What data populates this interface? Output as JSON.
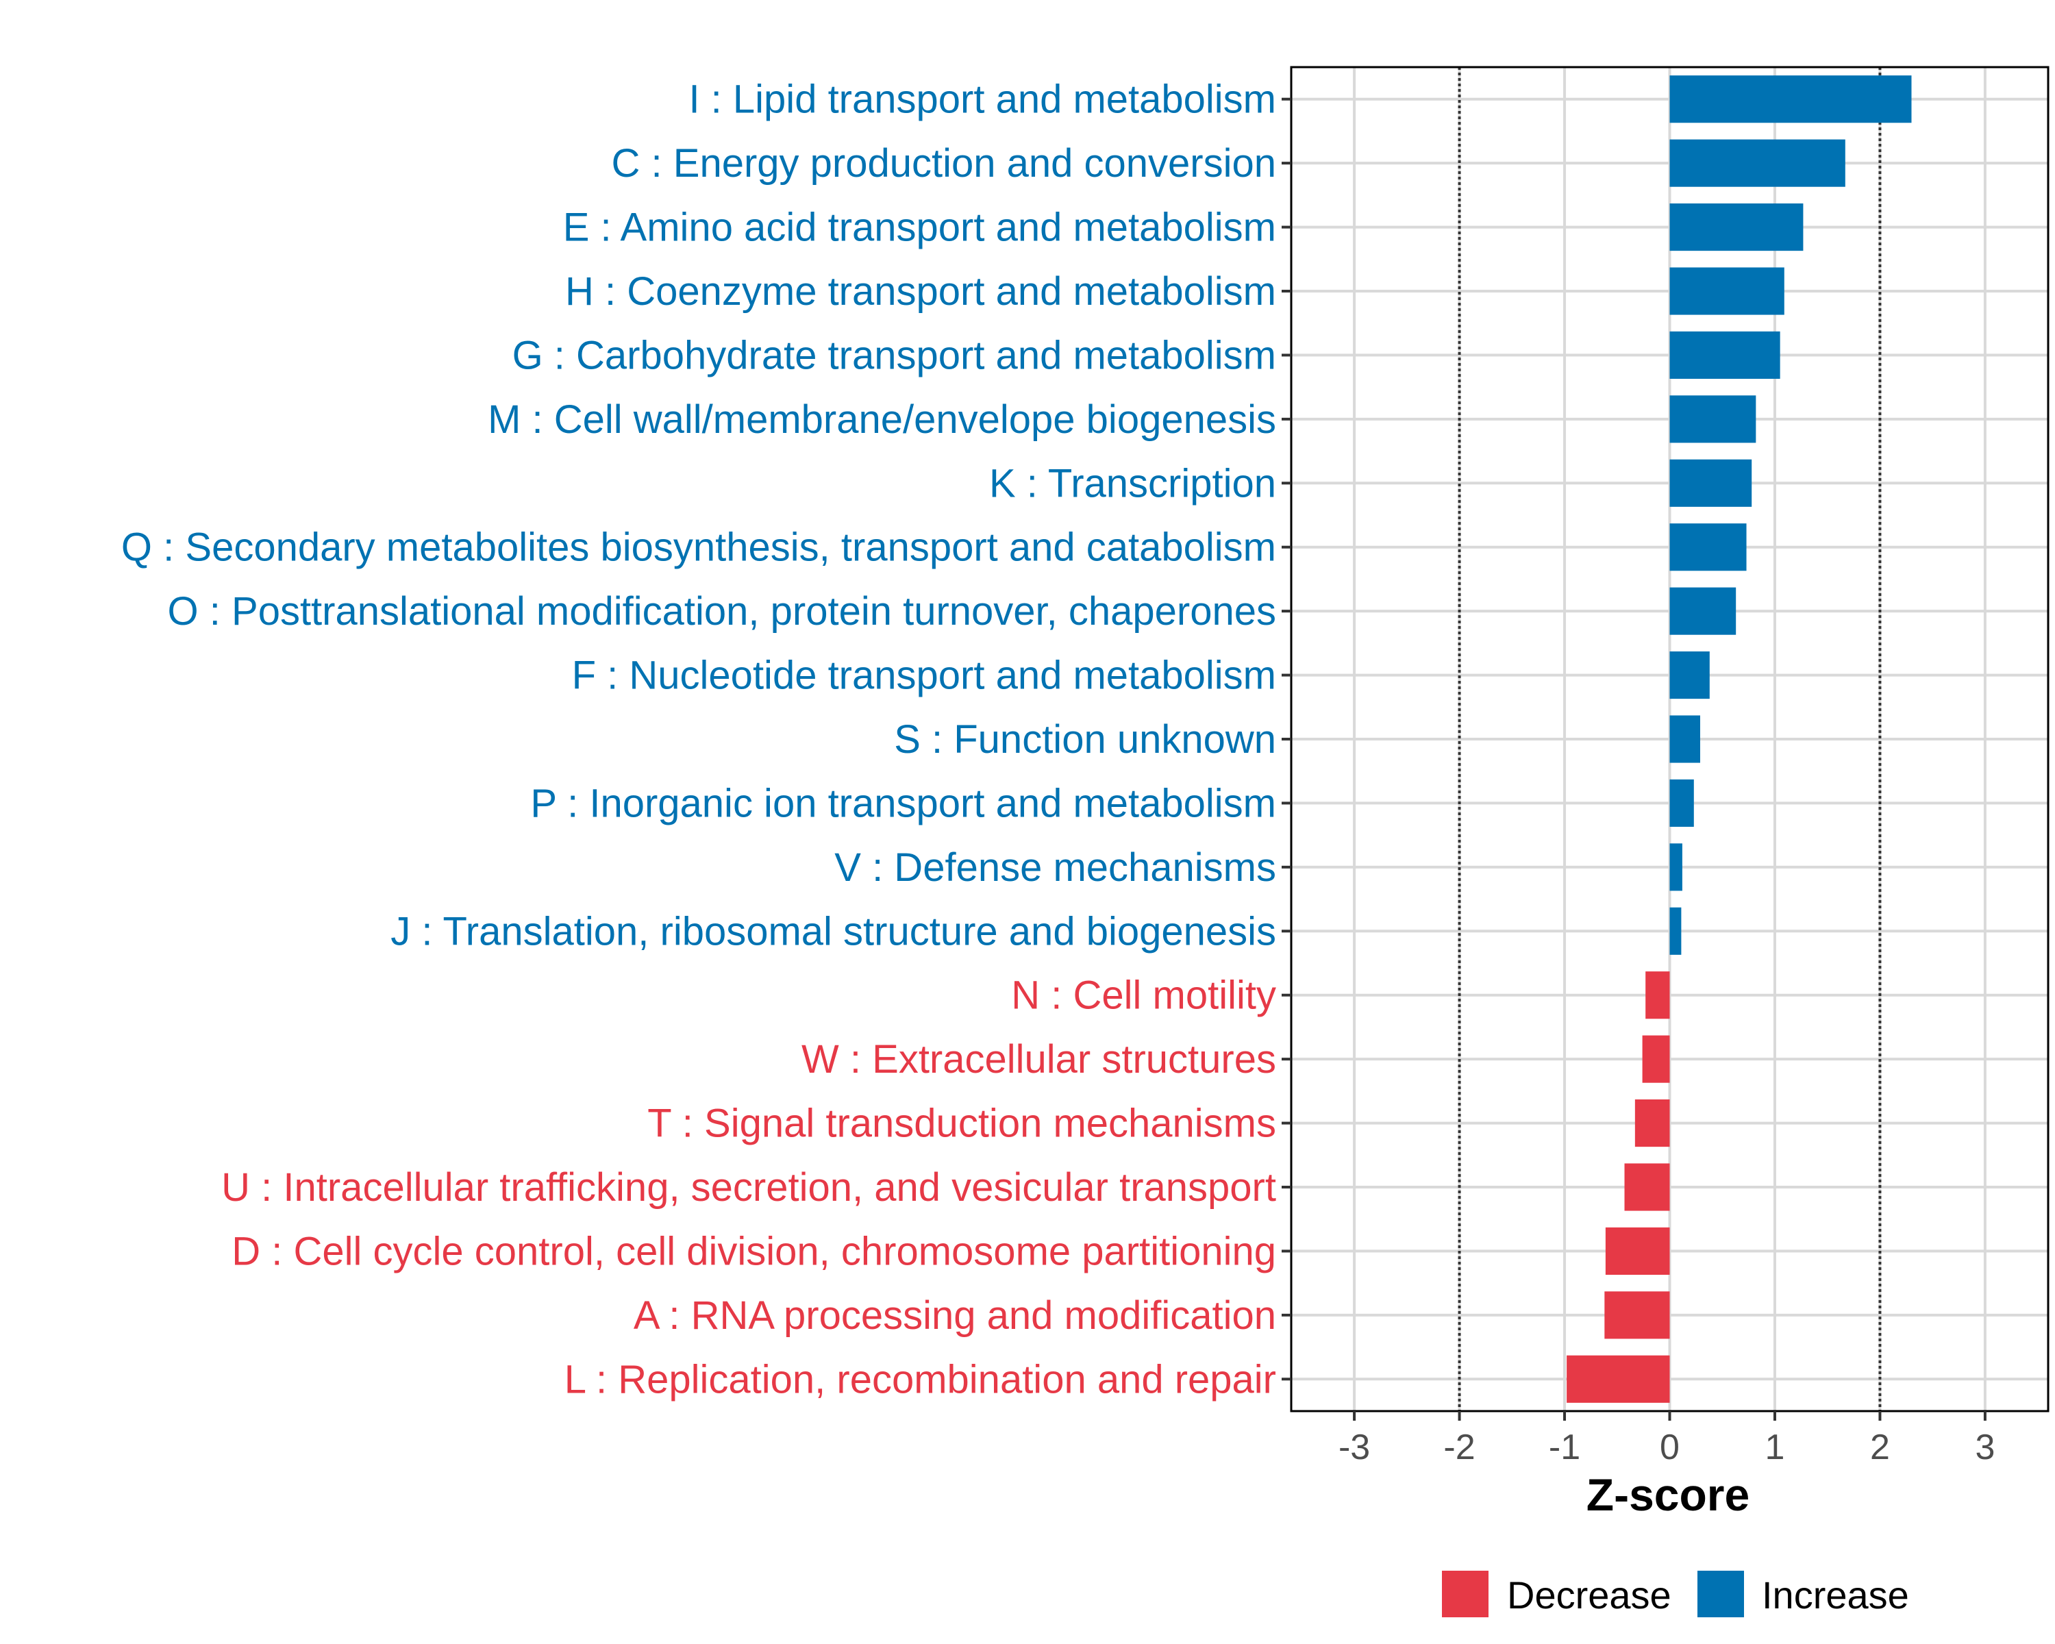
{
  "chart_data": {
    "type": "bar",
    "orientation": "horizontal",
    "title": "",
    "xlabel": "Z-score",
    "ylabel": "",
    "xlim": [
      -3.6,
      3.6
    ],
    "xticks": [
      "-3",
      "-2",
      "-1",
      "0",
      "1",
      "2",
      "3"
    ],
    "xtick_values": [
      -3,
      -2,
      -1,
      0,
      1,
      2,
      3
    ],
    "reference_lines": [
      -2,
      2
    ],
    "grid": true,
    "colors": {
      "Increase": "#0072B2",
      "Decrease": "#E63946"
    },
    "legend": {
      "placement": "bottom",
      "entries": [
        {
          "label": "Decrease",
          "color": "#E63946"
        },
        {
          "label": "Increase",
          "color": "#0072B2"
        }
      ]
    },
    "categories": [
      "I : Lipid transport and metabolism",
      "C : Energy production and conversion",
      "E : Amino acid transport and metabolism",
      "H : Coenzyme transport and metabolism",
      "G : Carbohydrate transport and metabolism",
      "M : Cell wall/membrane/envelope biogenesis",
      "K : Transcription",
      "Q : Secondary metabolites biosynthesis, transport and catabolism",
      "O : Posttranslational modification, protein turnover, chaperones",
      "F : Nucleotide transport and metabolism",
      "S : Function unknown",
      "P : Inorganic ion transport and metabolism",
      "V : Defense mechanisms",
      "J : Translation, ribosomal structure and biogenesis",
      "N : Cell motility",
      "W : Extracellular structures",
      "T : Signal transduction mechanisms",
      "U : Intracellular trafficking, secretion, and vesicular transport",
      "D : Cell cycle control, cell division, chromosome partitioning",
      "A : RNA processing and modification",
      "L : Replication, recombination and repair"
    ],
    "values": [
      2.3,
      1.67,
      1.27,
      1.09,
      1.05,
      0.82,
      0.78,
      0.73,
      0.63,
      0.38,
      0.29,
      0.23,
      0.12,
      0.11,
      -0.23,
      -0.26,
      -0.33,
      -0.43,
      -0.61,
      -0.62,
      -0.98
    ],
    "direction": [
      "Increase",
      "Increase",
      "Increase",
      "Increase",
      "Increase",
      "Increase",
      "Increase",
      "Increase",
      "Increase",
      "Increase",
      "Increase",
      "Increase",
      "Increase",
      "Increase",
      "Decrease",
      "Decrease",
      "Decrease",
      "Decrease",
      "Decrease",
      "Decrease",
      "Decrease"
    ]
  }
}
